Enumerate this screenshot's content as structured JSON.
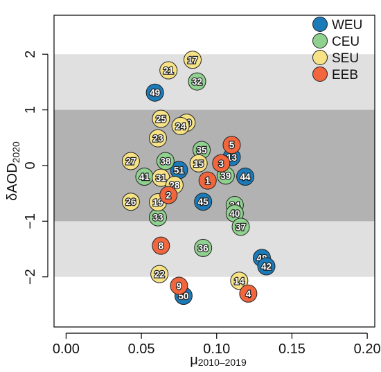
{
  "chart_data": {
    "type": "scatter",
    "xlabel": "μ",
    "xlabel_sub": "2010–2019",
    "ylabel": "δAOD",
    "ylabel_sub": "2020",
    "xlim": [
      -0.008,
      0.205
    ],
    "ylim": [
      -2.9,
      2.7
    ],
    "x_ticks": [
      0.0,
      0.05,
      0.1,
      0.15,
      0.2
    ],
    "x_tick_labels": [
      "0.00",
      "0.05",
      "0.10",
      "0.15",
      "0.20"
    ],
    "y_ticks": [
      -2,
      -1,
      0,
      1,
      2
    ],
    "y_tick_labels": [
      "−2",
      "−1",
      "0",
      "1",
      "2"
    ],
    "bands": [
      {
        "from": -2,
        "to": 2,
        "color": "#e0e0e0"
      },
      {
        "from": -1,
        "to": 1,
        "color": "#b2b2b2"
      }
    ],
    "grid": false,
    "legend_position": "top-right",
    "series": [
      {
        "name": "WEU",
        "color": "#1b7ab8",
        "points": [
          {
            "id": "49",
            "x": 0.059,
            "y": 1.31
          },
          {
            "id": "51",
            "x": 0.075,
            "y": -0.08
          },
          {
            "id": "45",
            "x": 0.091,
            "y": -0.65
          },
          {
            "id": "13",
            "x": 0.11,
            "y": 0.15
          },
          {
            "id": "44",
            "x": 0.119,
            "y": -0.2
          },
          {
            "id": "48",
            "x": 0.13,
            "y": -1.66
          },
          {
            "id": "42",
            "x": 0.133,
            "y": -1.81
          },
          {
            "id": "50",
            "x": 0.078,
            "y": -2.34
          }
        ]
      },
      {
        "name": "CEU",
        "color": "#8fd18f",
        "points": [
          {
            "id": "32",
            "x": 0.087,
            "y": 1.51
          },
          {
            "id": "35",
            "x": 0.09,
            "y": 0.28
          },
          {
            "id": "38",
            "x": 0.066,
            "y": 0.08
          },
          {
            "id": "41",
            "x": 0.052,
            "y": -0.2
          },
          {
            "id": "39",
            "x": 0.106,
            "y": -0.18
          },
          {
            "id": "34",
            "x": 0.112,
            "y": -0.71
          },
          {
            "id": "40",
            "x": 0.112,
            "y": -0.86
          },
          {
            "id": "33",
            "x": 0.061,
            "y": -0.93
          },
          {
            "id": "37",
            "x": 0.116,
            "y": -1.1
          },
          {
            "id": "36",
            "x": 0.091,
            "y": -1.48
          }
        ]
      },
      {
        "name": "SEU",
        "color": "#f7e386",
        "points": [
          {
            "id": "17",
            "x": 0.084,
            "y": 1.9
          },
          {
            "id": "21",
            "x": 0.068,
            "y": 1.71
          },
          {
            "id": "25",
            "x": 0.063,
            "y": 0.84
          },
          {
            "id": "10",
            "x": 0.08,
            "y": 0.77
          },
          {
            "id": "24",
            "x": 0.076,
            "y": 0.71
          },
          {
            "id": "23",
            "x": 0.061,
            "y": 0.49
          },
          {
            "id": "15",
            "x": 0.088,
            "y": 0.04
          },
          {
            "id": "27",
            "x": 0.043,
            "y": 0.08
          },
          {
            "id": "31",
            "x": 0.063,
            "y": -0.22
          },
          {
            "id": "28",
            "x": 0.072,
            "y": -0.35
          },
          {
            "id": "26",
            "x": 0.043,
            "y": -0.65
          },
          {
            "id": "19",
            "x": 0.061,
            "y": -0.66
          },
          {
            "id": "22",
            "x": 0.062,
            "y": -1.95
          },
          {
            "id": "14",
            "x": 0.115,
            "y": -2.07
          }
        ]
      },
      {
        "name": "EEB",
        "color": "#f2663e",
        "points": [
          {
            "id": "5",
            "x": 0.11,
            "y": 0.37
          },
          {
            "id": "3",
            "x": 0.103,
            "y": 0.04
          },
          {
            "id": "1",
            "x": 0.094,
            "y": -0.27
          },
          {
            "id": "2",
            "x": 0.068,
            "y": -0.53
          },
          {
            "id": "8",
            "x": 0.063,
            "y": -1.44
          },
          {
            "id": "9",
            "x": 0.075,
            "y": -2.16
          },
          {
            "id": "4",
            "x": 0.121,
            "y": -2.3
          }
        ]
      }
    ]
  }
}
